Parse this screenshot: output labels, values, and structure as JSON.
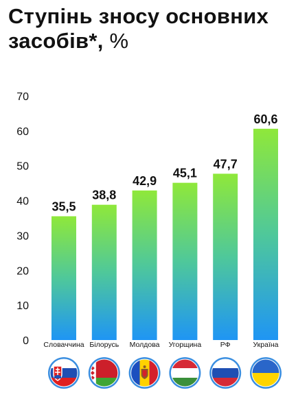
{
  "title": {
    "main": "Ступінь зносу основних засобів*,",
    "unit": "%"
  },
  "chart_data": {
    "type": "bar",
    "title": "Ступінь зносу основних засобів*, %",
    "categories": [
      "Словаччина",
      "Білорусь",
      "Молдова",
      "Угорщина",
      "РФ",
      "Україна"
    ],
    "values": [
      35.5,
      38.8,
      42.9,
      45.1,
      47.7,
      60.6
    ],
    "value_labels": [
      "35,5",
      "38,8",
      "42,9",
      "45,1",
      "47,7",
      "60,6"
    ],
    "yticks": [
      "0",
      "10",
      "20",
      "30",
      "40",
      "50",
      "60",
      "70"
    ],
    "ylim": [
      0,
      70
    ],
    "grid": false,
    "legend": "none",
    "bar_gradient": {
      "top": "#8fe83a",
      "bottom": "#1f95f4"
    }
  },
  "flags": [
    {
      "country": "Словаччина",
      "icon": "slovakia-flag-icon"
    },
    {
      "country": "Білорусь",
      "icon": "belarus-flag-icon"
    },
    {
      "country": "Молдова",
      "icon": "moldova-flag-icon"
    },
    {
      "country": "Угорщина",
      "icon": "hungary-flag-icon"
    },
    {
      "country": "РФ",
      "icon": "russia-flag-icon"
    },
    {
      "country": "Україна",
      "icon": "ukraine-flag-icon"
    }
  ]
}
